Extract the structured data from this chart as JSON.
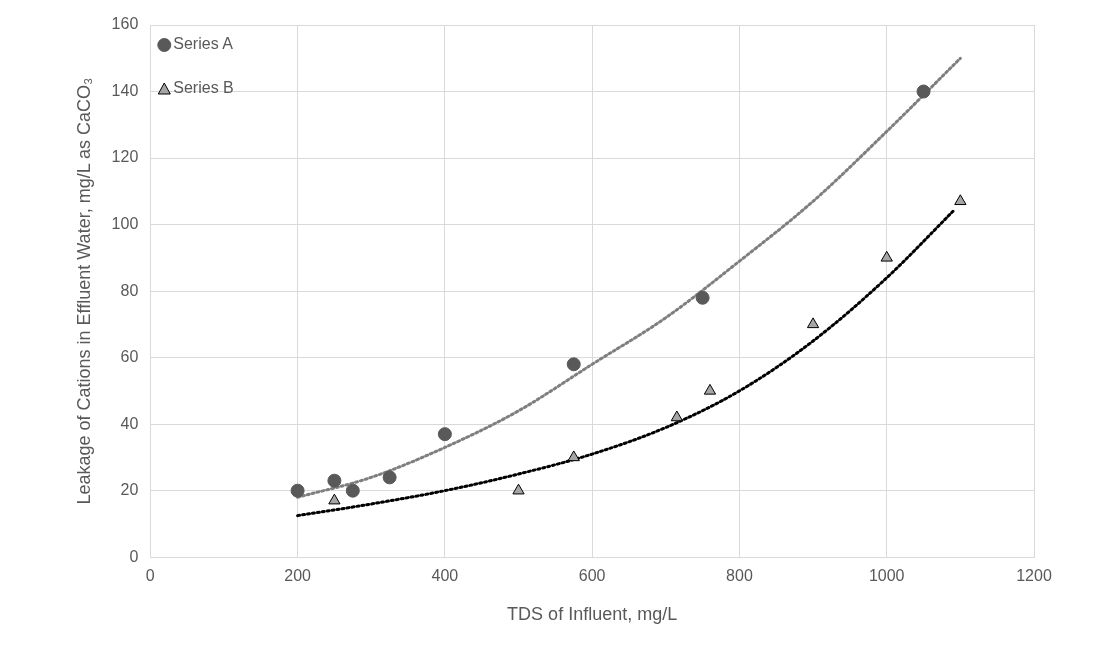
{
  "chart_data": {
    "type": "scatter",
    "xlabel": "TDS of Influent, mg/L",
    "ylabel": "Leakage of Cations in Effluent Water, mg/L as CaCO₃",
    "xlim": [
      0,
      1200
    ],
    "xticks": [
      0,
      200,
      400,
      600,
      800,
      1000,
      1200
    ],
    "ylim": [
      0,
      160
    ],
    "yticks": [
      0,
      20,
      40,
      60,
      80,
      100,
      120,
      140,
      160
    ],
    "grid": true,
    "legend": "top left",
    "series": [
      {
        "name": "Series A",
        "marker": "circle",
        "color": "#595959",
        "x": [
          200,
          250,
          275,
          325,
          400,
          575,
          750,
          1050
        ],
        "values": [
          20,
          23,
          20,
          24,
          37,
          58,
          78,
          140
        ]
      },
      {
        "name": "Series B",
        "marker": "triangle",
        "color": "#a5a5a5",
        "x": [
          250,
          500,
          575,
          715,
          760,
          900,
          1000,
          1100
        ],
        "values": [
          17,
          20,
          30,
          42,
          50,
          70,
          90,
          107
        ]
      },
      {
        "type": "line",
        "line_style": "dotted",
        "marker": "none",
        "color": "#7f7f7f",
        "x": [
          200,
          300,
          400,
          500,
          600,
          700,
          800,
          900,
          1000,
          1100
        ],
        "values": [
          18,
          24,
          33,
          44,
          58,
          72,
          89,
          107,
          128,
          150
        ]
      },
      {
        "type": "line",
        "line_style": "dotted",
        "marker": "none",
        "color": "#000000",
        "x": [
          200,
          300,
          400,
          500,
          600,
          700,
          800,
          900,
          1000,
          1090
        ],
        "values": [
          12.5,
          16,
          20,
          25,
          31,
          39,
          50,
          65,
          84,
          104
        ]
      }
    ]
  }
}
